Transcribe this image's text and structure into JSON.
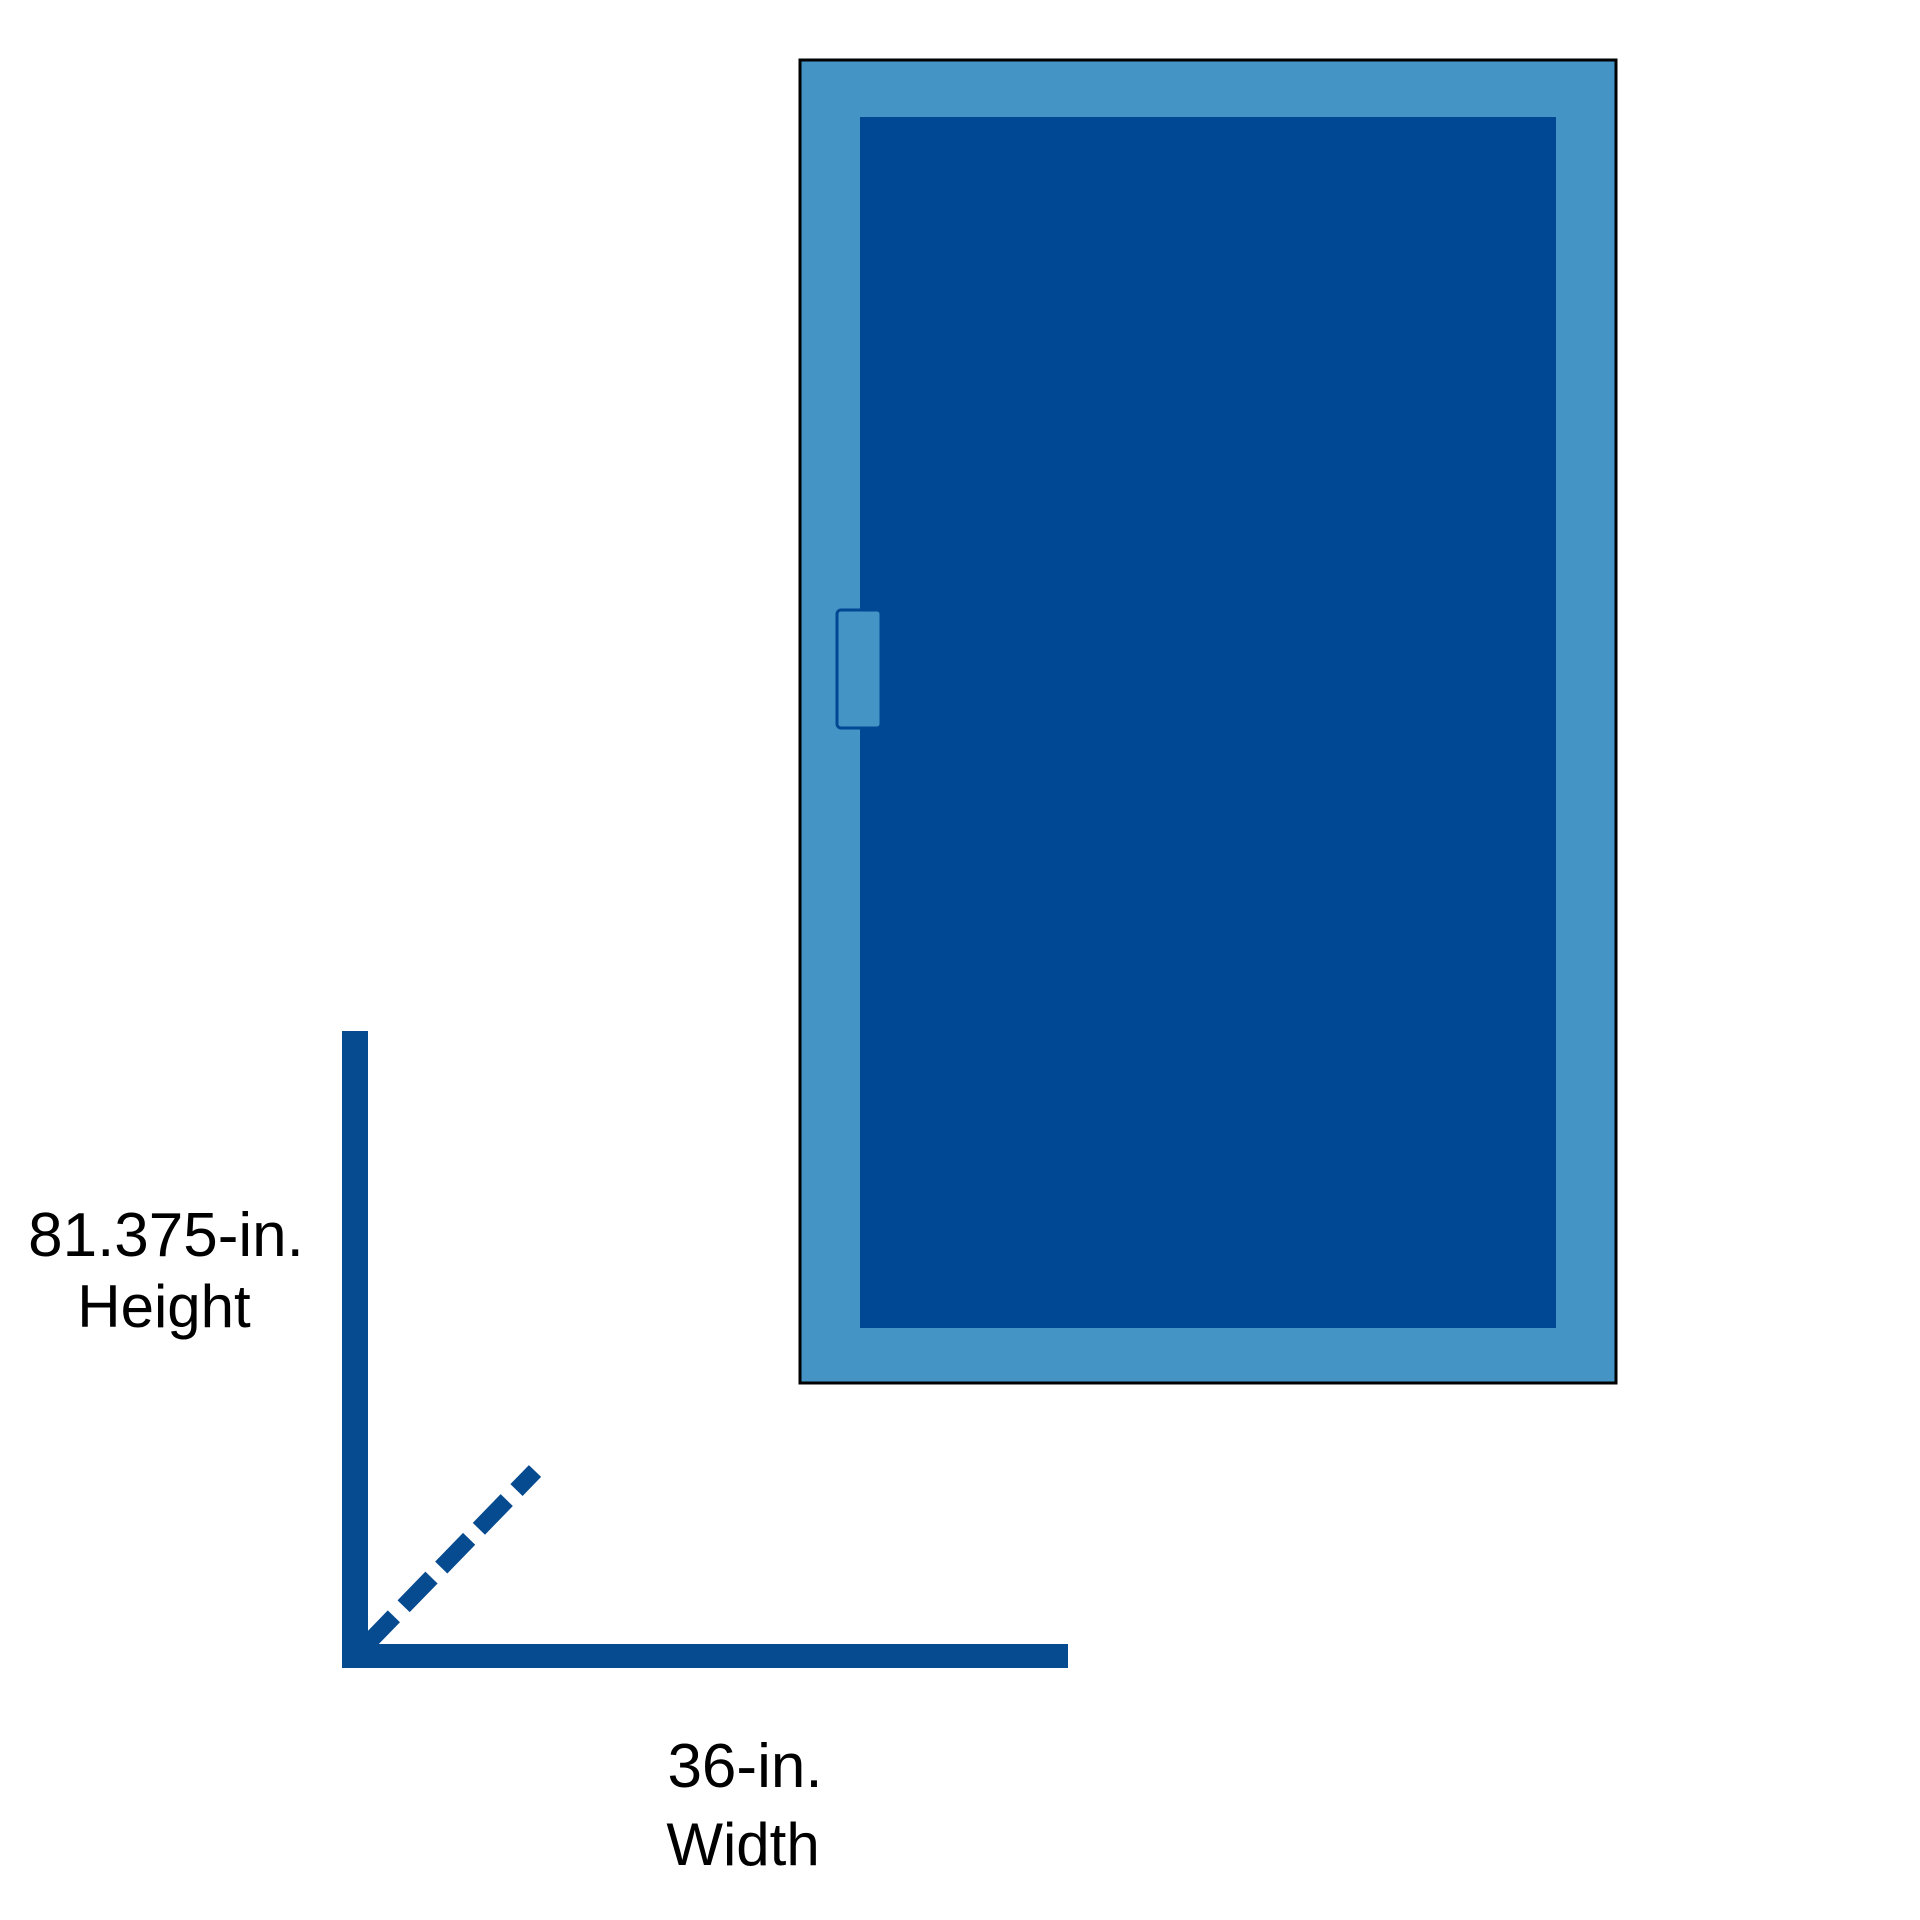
{
  "colors": {
    "door_frame": "#4495c5",
    "door_panel": "#004893",
    "dimension_lines": "#064a8f",
    "outline": "#000000"
  },
  "height_label": {
    "value": "81.375-in.",
    "caption": "Height"
  },
  "width_label": {
    "value": "36-in.",
    "caption": "Width"
  }
}
